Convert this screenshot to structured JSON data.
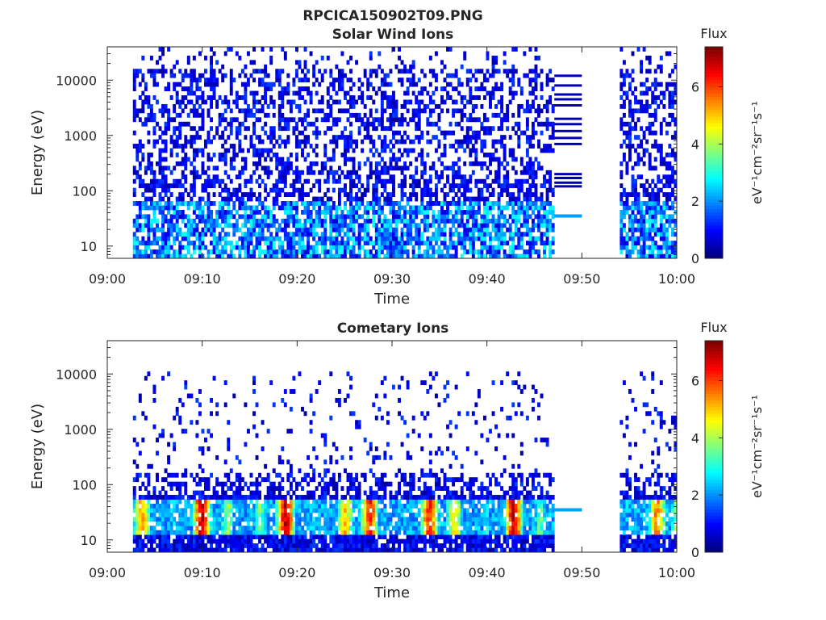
{
  "figure": {
    "title": "RPCICA150902T09.PNG"
  },
  "chart_data": [
    {
      "type": "heatmap",
      "title": "Solar Wind Ions",
      "xlabel": "Time",
      "ylabel": "Energy (eV)",
      "x_ticks": [
        "09:00",
        "09:10",
        "09:20",
        "09:30",
        "09:40",
        "09:50",
        "10:00"
      ],
      "x_range_minutes": [
        0,
        60
      ],
      "y_ticks": [
        10,
        100,
        1000,
        10000
      ],
      "y_tick_labels": [
        "10",
        "100",
        "1000",
        "10000"
      ],
      "y_scale": "log",
      "y_range": [
        6,
        40000
      ],
      "data_gap_minutes": [
        47,
        54
      ],
      "colorbar": {
        "title": "Flux",
        "label": "eV⁻¹cm⁻²sr⁻¹s⁻¹",
        "ticks": [
          0,
          2,
          4,
          6
        ],
        "range": [
          0,
          7.4
        ],
        "colormap": "jet"
      }
    },
    {
      "type": "heatmap",
      "title": "Cometary Ions",
      "xlabel": "Time",
      "ylabel": "Energy (eV)",
      "x_ticks": [
        "09:00",
        "09:10",
        "09:20",
        "09:30",
        "09:40",
        "09:50",
        "10:00"
      ],
      "x_range_minutes": [
        0,
        60
      ],
      "y_ticks": [
        10,
        100,
        1000,
        10000
      ],
      "y_tick_labels": [
        "10",
        "100",
        "1000",
        "10000"
      ],
      "y_scale": "log",
      "y_range": [
        6,
        40000
      ],
      "data_gap_minutes": [
        47,
        54
      ],
      "colorbar": {
        "title": "Flux",
        "label": "eV⁻¹cm⁻²sr⁻¹s⁻¹",
        "ticks": [
          0,
          2,
          4,
          6
        ],
        "range": [
          0,
          7.4
        ],
        "colormap": "jet"
      }
    }
  ]
}
